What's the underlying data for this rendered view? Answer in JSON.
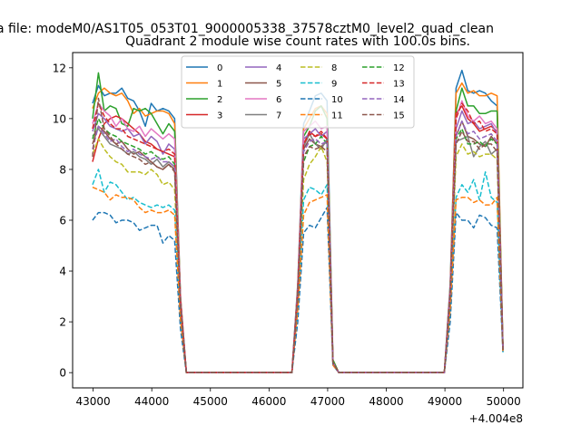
{
  "chart_data": {
    "type": "line",
    "suptitle": "a file: modeM0/AS1T05_053T01_9000005338_37578cztM0_level2_quad_clean",
    "title": "Quadrant 2 module wise count rates with 100.0s bins.",
    "xlabel": "",
    "ylabel": "",
    "x_offset_label": "+4.004e8",
    "xlim": [
      42650,
      50330
    ],
    "ylim": [
      -0.6,
      12.6
    ],
    "xticks": [
      43000,
      44000,
      45000,
      46000,
      47000,
      48000,
      49000,
      50000
    ],
    "xtick_labels": [
      "43000",
      "44000",
      "45000",
      "46000",
      "47000",
      "48000",
      "49000",
      "50000"
    ],
    "yticks": [
      0,
      2,
      4,
      6,
      8,
      10,
      12
    ],
    "ytick_labels": [
      "0",
      "2",
      "4",
      "6",
      "8",
      "10",
      "12"
    ],
    "grid": false,
    "legend_position": "upper-center",
    "legend_columns": 4,
    "x": [
      42990,
      43090,
      43190,
      43290,
      43390,
      43490,
      43590,
      43690,
      43790,
      43890,
      43990,
      44090,
      44190,
      44290,
      44390,
      44490,
      44590,
      44690,
      44790,
      44890,
      44990,
      45090,
      45190,
      45290,
      45390,
      45490,
      45590,
      45690,
      45790,
      45890,
      45990,
      46090,
      46190,
      46290,
      46390,
      46490,
      46590,
      46690,
      46790,
      46890,
      46990,
      47090,
      47190,
      47290,
      47390,
      47490,
      47590,
      47690,
      47790,
      47890,
      47990,
      48090,
      48190,
      48290,
      48390,
      48490,
      48590,
      48690,
      48790,
      48890,
      48990,
      49090,
      49190,
      49290,
      49390,
      49490,
      49590,
      49690,
      49790,
      49890,
      49990
    ],
    "series": [
      {
        "name": "0",
        "color": "#1f77b4",
        "dash": "solid",
        "values": [
          10.6,
          11.3,
          10.9,
          11.0,
          11.0,
          11.2,
          10.8,
          10.7,
          10.3,
          9.7,
          10.6,
          10.3,
          10.4,
          10.3,
          10.0,
          3.0,
          0,
          0,
          0,
          0,
          0,
          0,
          0,
          0,
          0,
          0,
          0,
          0,
          0,
          0,
          0,
          0,
          0,
          0,
          0,
          3.5,
          9.8,
          10.3,
          10.9,
          11.0,
          10.7,
          0.5,
          0,
          0,
          0,
          0,
          0,
          0,
          0,
          0,
          0,
          0,
          0,
          0,
          0,
          0,
          0,
          0,
          0,
          0,
          0,
          3.5,
          11.2,
          11.9,
          11.1,
          11.0,
          11.1,
          11.0,
          10.7,
          10.5,
          1.0
        ]
      },
      {
        "name": "1",
        "color": "#ff7f0e",
        "dash": "solid",
        "values": [
          10.4,
          11.0,
          11.2,
          11.0,
          10.9,
          11.0,
          10.7,
          10.2,
          10.4,
          10.1,
          10.2,
          10.3,
          10.3,
          10.2,
          9.8,
          3.0,
          0,
          0,
          0,
          0,
          0,
          0,
          0,
          0,
          0,
          0,
          0,
          0,
          0,
          0,
          0,
          0,
          0,
          0,
          0,
          3.4,
          9.6,
          10.0,
          10.4,
          10.5,
          10.2,
          0.5,
          0,
          0,
          0,
          0,
          0,
          0,
          0,
          0,
          0,
          0,
          0,
          0,
          0,
          0,
          0,
          0,
          0,
          0,
          0,
          3.4,
          11.0,
          11.4,
          11.0,
          11.1,
          10.9,
          10.9,
          11.0,
          10.9,
          1.0
        ]
      },
      {
        "name": "2",
        "color": "#2ca02c",
        "dash": "solid",
        "values": [
          10.0,
          11.8,
          10.3,
          10.5,
          10.4,
          9.8,
          9.7,
          10.4,
          10.3,
          10.4,
          10.2,
          9.8,
          9.4,
          9.8,
          9.5,
          2.9,
          0,
          0,
          0,
          0,
          0,
          0,
          0,
          0,
          0,
          0,
          0,
          0,
          0,
          0,
          0,
          0,
          0,
          0,
          0,
          3.3,
          9.3,
          9.7,
          10.3,
          10.5,
          10.0,
          0.5,
          0,
          0,
          0,
          0,
          0,
          0,
          0,
          0,
          0,
          0,
          0,
          0,
          0,
          0,
          0,
          0,
          0,
          0,
          0,
          3.3,
          10.3,
          11.2,
          10.5,
          10.5,
          10.2,
          10.2,
          10.3,
          10.3,
          1.0
        ]
      },
      {
        "name": "3",
        "color": "#d62728",
        "dash": "solid",
        "values": [
          8.3,
          9.2,
          9.8,
          10.0,
          10.1,
          10.0,
          9.8,
          9.6,
          9.4,
          9.1,
          9.0,
          8.8,
          8.7,
          8.6,
          8.5,
          2.7,
          0,
          0,
          0,
          0,
          0,
          0,
          0,
          0,
          0,
          0,
          0,
          0,
          0,
          0,
          0,
          0,
          0,
          0,
          0,
          3.1,
          9.0,
          9.5,
          9.3,
          9.4,
          9.2,
          0.4,
          0,
          0,
          0,
          0,
          0,
          0,
          0,
          0,
          0,
          0,
          0,
          0,
          0,
          0,
          0,
          0,
          0,
          0,
          0,
          3.1,
          10.2,
          10.5,
          10.0,
          9.8,
          9.5,
          9.6,
          9.7,
          9.5,
          0.9
        ]
      },
      {
        "name": "4",
        "color": "#9467bd",
        "dash": "solid",
        "values": [
          9.5,
          10.2,
          10.0,
          9.7,
          9.6,
          9.5,
          9.6,
          9.3,
          9.4,
          9.0,
          9.3,
          9.1,
          8.6,
          9.0,
          8.8,
          2.8,
          0,
          0,
          0,
          0,
          0,
          0,
          0,
          0,
          0,
          0,
          0,
          0,
          0,
          0,
          0,
          0,
          0,
          0,
          0,
          3.2,
          9.2,
          9.4,
          9.6,
          9.3,
          9.5,
          0.4,
          0,
          0,
          0,
          0,
          0,
          0,
          0,
          0,
          0,
          0,
          0,
          0,
          0,
          0,
          0,
          0,
          0,
          0,
          0,
          3.2,
          9.6,
          10.3,
          9.8,
          9.9,
          9.6,
          9.7,
          9.8,
          9.4,
          0.9
        ]
      },
      {
        "name": "5",
        "color": "#8c564b",
        "dash": "solid",
        "values": [
          9.0,
          9.7,
          9.5,
          9.2,
          9.0,
          9.1,
          8.8,
          8.6,
          8.7,
          8.5,
          8.3,
          8.1,
          8.0,
          8.2,
          8.0,
          2.6,
          0,
          0,
          0,
          0,
          0,
          0,
          0,
          0,
          0,
          0,
          0,
          0,
          0,
          0,
          0,
          0,
          0,
          0,
          0,
          3.0,
          8.8,
          9.2,
          9.0,
          8.9,
          9.1,
          0.4,
          0,
          0,
          0,
          0,
          0,
          0,
          0,
          0,
          0,
          0,
          0,
          0,
          0,
          0,
          0,
          0,
          0,
          0,
          0,
          3.0,
          9.3,
          9.9,
          9.3,
          9.2,
          9.0,
          8.9,
          9.3,
          9.0,
          0.9
        ]
      },
      {
        "name": "6",
        "color": "#e377c2",
        "dash": "solid",
        "values": [
          9.8,
          10.6,
          10.3,
          10.1,
          9.7,
          10.0,
          9.6,
          9.5,
          9.7,
          9.3,
          9.6,
          9.4,
          9.2,
          9.4,
          9.2,
          2.9,
          0,
          0,
          0,
          0,
          0,
          0,
          0,
          0,
          0,
          0,
          0,
          0,
          0,
          0,
          0,
          0,
          0,
          0,
          0,
          3.3,
          9.5,
          9.7,
          9.9,
          9.6,
          9.7,
          0.4,
          0,
          0,
          0,
          0,
          0,
          0,
          0,
          0,
          0,
          0,
          0,
          0,
          0,
          0,
          0,
          0,
          0,
          0,
          0,
          3.3,
          10.0,
          10.7,
          10.1,
          9.9,
          10.1,
          9.8,
          9.9,
          9.6,
          0.9
        ]
      },
      {
        "name": "7",
        "color": "#7f7f7f",
        "dash": "solid",
        "values": [
          9.3,
          9.6,
          9.3,
          9.0,
          8.9,
          8.8,
          8.6,
          8.7,
          8.5,
          8.4,
          8.2,
          8.4,
          8.1,
          8.3,
          8.1,
          2.7,
          0,
          0,
          0,
          0,
          0,
          0,
          0,
          0,
          0,
          0,
          0,
          0,
          0,
          0,
          0,
          0,
          0,
          0,
          0,
          3.1,
          8.9,
          9.4,
          9.0,
          8.8,
          9.2,
          0.4,
          0,
          0,
          0,
          0,
          0,
          0,
          0,
          0,
          0,
          0,
          0,
          0,
          0,
          0,
          0,
          0,
          0,
          0,
          0,
          3.1,
          9.1,
          9.2,
          9.3,
          8.5,
          8.9,
          9.1,
          8.6,
          8.8,
          0.9
        ]
      },
      {
        "name": "8",
        "color": "#bcbd22",
        "dash": "dashed",
        "values": [
          8.6,
          9.2,
          8.8,
          8.5,
          8.3,
          8.2,
          7.9,
          7.9,
          7.9,
          7.8,
          8.0,
          7.8,
          7.4,
          7.5,
          7.2,
          2.4,
          0,
          0,
          0,
          0,
          0,
          0,
          0,
          0,
          0,
          0,
          0,
          0,
          0,
          0,
          0,
          0,
          0,
          0,
          0,
          2.8,
          7.6,
          8.2,
          8.5,
          8.9,
          8.3,
          0.4,
          0,
          0,
          0,
          0,
          0,
          0,
          0,
          0,
          0,
          0,
          0,
          0,
          0,
          0,
          0,
          0,
          0,
          0,
          0,
          2.8,
          8.5,
          9.0,
          8.6,
          8.7,
          8.5,
          8.6,
          8.6,
          8.4,
          0.8
        ]
      },
      {
        "name": "9",
        "color": "#17becf",
        "dash": "dashed",
        "values": [
          7.4,
          8.0,
          7.1,
          7.5,
          7.4,
          7.1,
          6.8,
          6.9,
          6.7,
          6.6,
          6.5,
          6.6,
          6.5,
          6.6,
          6.4,
          2.1,
          0,
          0,
          0,
          0,
          0,
          0,
          0,
          0,
          0,
          0,
          0,
          0,
          0,
          0,
          0,
          0,
          0,
          0,
          0,
          2.5,
          6.8,
          7.3,
          7.2,
          7.0,
          7.4,
          0.3,
          0,
          0,
          0,
          0,
          0,
          0,
          0,
          0,
          0,
          0,
          0,
          0,
          0,
          0,
          0,
          0,
          0,
          0,
          0,
          2.5,
          6.9,
          7.4,
          7.1,
          7.6,
          6.8,
          7.9,
          6.9,
          6.7,
          0.8
        ]
      },
      {
        "name": "10",
        "color": "#1f77b4",
        "dash": "dashed",
        "values": [
          6.0,
          6.3,
          6.3,
          6.2,
          5.9,
          6.0,
          6.0,
          5.9,
          5.6,
          5.7,
          5.8,
          5.8,
          5.1,
          5.4,
          5.2,
          1.7,
          0,
          0,
          0,
          0,
          0,
          0,
          0,
          0,
          0,
          0,
          0,
          0,
          0,
          0,
          0,
          0,
          0,
          0,
          0,
          2.0,
          5.5,
          5.8,
          5.7,
          6.1,
          6.5,
          0.3,
          0,
          0,
          0,
          0,
          0,
          0,
          0,
          0,
          0,
          0,
          0,
          0,
          0,
          0,
          0,
          0,
          0,
          0,
          0,
          2.0,
          6.3,
          6.0,
          6.0,
          5.7,
          6.2,
          6.1,
          5.8,
          5.7,
          0.8
        ]
      },
      {
        "name": "11",
        "color": "#ff7f0e",
        "dash": "dashed",
        "values": [
          7.3,
          7.2,
          7.1,
          6.8,
          7.0,
          6.9,
          6.9,
          6.8,
          6.5,
          6.3,
          6.4,
          6.3,
          6.3,
          6.4,
          6.2,
          2.1,
          0,
          0,
          0,
          0,
          0,
          0,
          0,
          0,
          0,
          0,
          0,
          0,
          0,
          0,
          0,
          0,
          0,
          0,
          0,
          2.5,
          6.2,
          6.7,
          6.8,
          6.9,
          7.0,
          0.3,
          0,
          0,
          0,
          0,
          0,
          0,
          0,
          0,
          0,
          0,
          0,
          0,
          0,
          0,
          0,
          0,
          0,
          0,
          0,
          2.5,
          6.8,
          6.9,
          6.9,
          6.7,
          6.8,
          6.6,
          6.6,
          6.9,
          0.8
        ]
      },
      {
        "name": "12",
        "color": "#2ca02c",
        "dash": "dashed",
        "values": [
          9.2,
          10.0,
          9.6,
          9.4,
          9.3,
          9.1,
          9.0,
          8.9,
          8.8,
          8.6,
          8.7,
          8.5,
          8.4,
          8.5,
          8.2,
          2.7,
          0,
          0,
          0,
          0,
          0,
          0,
          0,
          0,
          0,
          0,
          0,
          0,
          0,
          0,
          0,
          0,
          0,
          0,
          0,
          3.1,
          8.3,
          8.9,
          9.0,
          9.3,
          9.0,
          0.4,
          0,
          0,
          0,
          0,
          0,
          0,
          0,
          0,
          0,
          0,
          0,
          0,
          0,
          0,
          0,
          0,
          0,
          0,
          0,
          3.1,
          9.2,
          9.6,
          9.0,
          9.0,
          9.1,
          8.9,
          9.2,
          9.0,
          0.9
        ]
      },
      {
        "name": "13",
        "color": "#d62728",
        "dash": "dashed",
        "values": [
          9.6,
          10.6,
          10.1,
          9.8,
          9.6,
          9.6,
          9.3,
          9.2,
          9.1,
          9.0,
          8.9,
          8.8,
          8.7,
          8.8,
          8.6,
          2.8,
          0,
          0,
          0,
          0,
          0,
          0,
          0,
          0,
          0,
          0,
          0,
          0,
          0,
          0,
          0,
          0,
          0,
          0,
          0,
          3.2,
          9.0,
          9.4,
          9.3,
          9.5,
          9.2,
          0.4,
          0,
          0,
          0,
          0,
          0,
          0,
          0,
          0,
          0,
          0,
          0,
          0,
          0,
          0,
          0,
          0,
          0,
          0,
          0,
          3.2,
          10.0,
          10.6,
          10.3,
          9.8,
          9.9,
          9.5,
          9.6,
          9.4,
          0.9
        ]
      },
      {
        "name": "14",
        "color": "#9467bd",
        "dash": "dashed",
        "values": [
          8.8,
          9.7,
          9.4,
          9.1,
          9.2,
          8.9,
          8.7,
          8.8,
          8.6,
          8.5,
          8.4,
          8.5,
          8.3,
          8.3,
          8.1,
          2.7,
          0,
          0,
          0,
          0,
          0,
          0,
          0,
          0,
          0,
          0,
          0,
          0,
          0,
          0,
          0,
          0,
          0,
          0,
          0,
          3.1,
          8.7,
          9.1,
          9.2,
          9.0,
          9.1,
          0.4,
          0,
          0,
          0,
          0,
          0,
          0,
          0,
          0,
          0,
          0,
          0,
          0,
          0,
          0,
          0,
          0,
          0,
          0,
          0,
          3.1,
          9.3,
          9.9,
          9.4,
          9.5,
          9.2,
          9.3,
          9.4,
          9.1,
          0.9
        ]
      },
      {
        "name": "15",
        "color": "#8c564b",
        "dash": "dashed",
        "values": [
          8.5,
          10.8,
          9.6,
          9.3,
          9.0,
          8.8,
          8.6,
          8.5,
          8.4,
          8.2,
          8.3,
          8.1,
          8.0,
          8.2,
          7.9,
          2.6,
          0,
          0,
          0,
          0,
          0,
          0,
          0,
          0,
          0,
          0,
          0,
          0,
          0,
          0,
          0,
          0,
          0,
          0,
          0,
          3.0,
          8.5,
          8.9,
          8.8,
          8.9,
          8.7,
          0.4,
          0,
          0,
          0,
          0,
          0,
          0,
          0,
          0,
          0,
          0,
          0,
          0,
          0,
          0,
          0,
          0,
          0,
          0,
          0,
          3.0,
          9.0,
          9.5,
          9.1,
          9.1,
          8.8,
          9.0,
          9.0,
          8.7,
          0.9
        ]
      }
    ]
  }
}
